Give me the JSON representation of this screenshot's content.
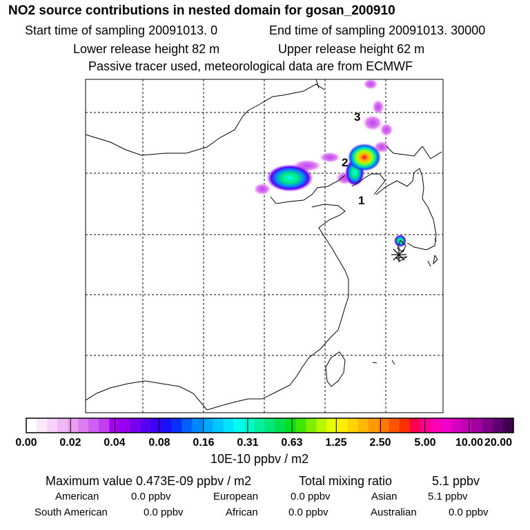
{
  "header": {
    "title": "NO2 source contributions in nested domain for gosan_200910",
    "start_sampling": "Start time of sampling 20091013.     0",
    "end_sampling": "End time of sampling 20091013. 30000",
    "lower_release": "Lower release height   82 m",
    "upper_release": "Upper release height   62 m",
    "tracer_note": "Passive tracer used, meteorological data are from ECMWF"
  },
  "map": {
    "markers": [
      {
        "label": "1"
      },
      {
        "label": "2"
      },
      {
        "label": "3"
      }
    ],
    "receptor": "gosan"
  },
  "colorbar": {
    "tick_labels": [
      "0.00",
      "0.02",
      "0.04",
      "0.08",
      "0.16",
      "0.31",
      "0.63",
      "1.25",
      "2.50",
      "5.00",
      "10.00",
      "20.00"
    ],
    "units": "10E-10 ppbv / m2",
    "colors": [
      "#ffffff",
      "#fbe9fb",
      "#f6d2f8",
      "#f0b8f5",
      "#ea9ef1",
      "#dd7ef0",
      "#cf5ff0",
      "#c040f0",
      "#a800f0",
      "#9900f0",
      "#7a00f0",
      "#5a00f4",
      "#3a00f8",
      "#1a10fc",
      "#0a30ff",
      "#0060ff",
      "#0088ff",
      "#00aaff",
      "#00c8ff",
      "#00e4ff",
      "#00ffee",
      "#00f8c8",
      "#00f0a0",
      "#00e878",
      "#00e050",
      "#00e020",
      "#40e800",
      "#80f000",
      "#b8f800",
      "#e8ff00",
      "#ffee00",
      "#ffd400",
      "#ffb800",
      "#ff9a00",
      "#ff7a00",
      "#ff5500",
      "#ff3000",
      "#ff0050",
      "#ff0090",
      "#ff00b8",
      "#f000c8",
      "#d800c0",
      "#c000b0",
      "#a000a0",
      "#800088",
      "#600070",
      "#400050"
    ]
  },
  "summary": {
    "max_value": "Maximum value  0.473E-09 ppbv / m2",
    "total_label": "Total mixing ratio",
    "total_value": "5.1 ppbv",
    "regions": [
      {
        "name": "American",
        "value": "0.0 ppbv"
      },
      {
        "name": "European",
        "value": "0.0 ppbv"
      },
      {
        "name": "Asian",
        "value": "5.1 ppbv"
      },
      {
        "name": "South American",
        "value": "0.0 ppbv"
      },
      {
        "name": "African",
        "value": "0.0 ppbv"
      },
      {
        "name": "Australian",
        "value": "0.0 ppbv"
      }
    ]
  }
}
